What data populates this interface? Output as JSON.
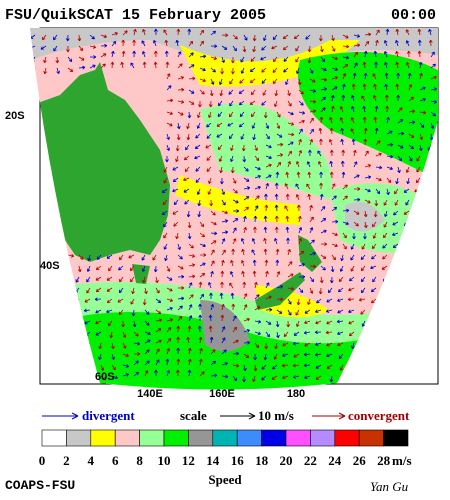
{
  "header": {
    "title": "FSU/QuikSCAT  15 February 2005",
    "time": "00:00"
  },
  "map": {
    "lat_labels": [
      "20S",
      "40S",
      "60S"
    ],
    "lon_labels": [
      "140E",
      "160E",
      "180"
    ]
  },
  "legend": {
    "divergent": "divergent",
    "scale": "scale",
    "scale_value": "10 m/s",
    "convergent": "convergent"
  },
  "colorbar": {
    "title": "Speed",
    "unit": "m/s",
    "ticks": [
      0,
      2,
      4,
      6,
      8,
      10,
      12,
      14,
      16,
      18,
      20,
      22,
      24,
      26,
      28
    ],
    "colors": [
      "#ffffff",
      "#c8c8c8",
      "#ffff00",
      "#ffc8c8",
      "#96ff96",
      "#00f000",
      "#969696",
      "#00b4b4",
      "#3c8cff",
      "#0000e6",
      "#ff50ff",
      "#b48cff",
      "#ff0000",
      "#c83200",
      "#000000"
    ]
  },
  "footer": {
    "left": "COAPS-FSU",
    "right": "Yan Gu"
  }
}
